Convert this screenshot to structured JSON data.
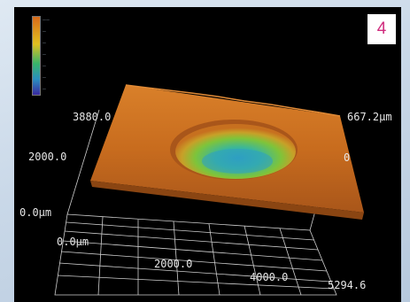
{
  "panel_number": "4",
  "axes": {
    "y_max": "3880.0",
    "y_mid": "2000.0",
    "y_zero": "0.0µm",
    "x_zero": "0.0µm",
    "x_mid": "2000.0",
    "x_4000": "4000.0",
    "x_max": "5294.6",
    "z_max": "667.2µm",
    "z_zero": "0"
  },
  "colors": {
    "frame_bg": "#000000",
    "surface_high": "#c46a1c",
    "surface_low": "#2aa8a0",
    "badge_text": "#d02c7e"
  }
}
